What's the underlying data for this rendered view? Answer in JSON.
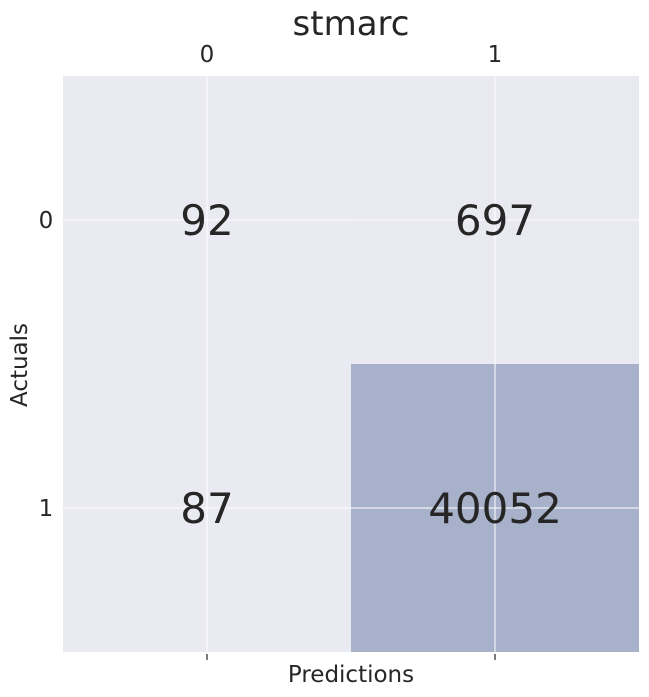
{
  "chart_data": {
    "type": "heatmap",
    "title": "stmarc",
    "xlabel": "Predictions",
    "ylabel": "Actuals",
    "x_categories": [
      "0",
      "1"
    ],
    "y_categories": [
      "0",
      "1"
    ],
    "x_axis_position": "top",
    "matrix": [
      [
        92,
        697
      ],
      [
        87,
        40052
      ]
    ],
    "grid": true,
    "colors": {
      "background": "#eaeaf2",
      "low": "#eaeaf2",
      "high": "#a7b2ca",
      "grid": "#ffffff",
      "text": "#262626"
    }
  }
}
